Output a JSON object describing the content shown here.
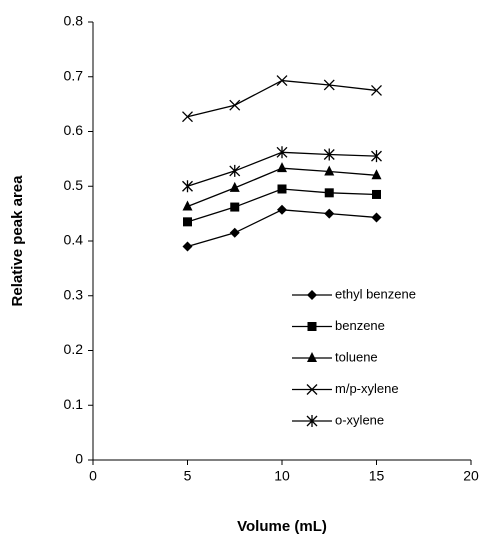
{
  "chart_data": {
    "type": "line",
    "x_label": "Volume (mL)",
    "y_label": "Relative peak area",
    "x": [
      5,
      7.5,
      10,
      12.5,
      15
    ],
    "series": [
      {
        "name": "ethyl benzene",
        "color": "#000000",
        "marker": "diamond",
        "values": [
          0.39,
          0.415,
          0.457,
          0.45,
          0.443
        ]
      },
      {
        "name": "benzene",
        "color": "#000000",
        "marker": "square",
        "values": [
          0.435,
          0.462,
          0.495,
          0.488,
          0.485
        ]
      },
      {
        "name": "toluene",
        "color": "#000000",
        "marker": "triangle",
        "values": [
          0.463,
          0.497,
          0.533,
          0.527,
          0.52
        ]
      },
      {
        "name": "m/p-xylene",
        "color": "#000000",
        "marker": "x",
        "values": [
          0.627,
          0.648,
          0.693,
          0.685,
          0.675
        ]
      },
      {
        "name": "o-xylene",
        "color": "#000000",
        "marker": "asterisk",
        "values": [
          0.5,
          0.528,
          0.562,
          0.558,
          0.555
        ]
      }
    ],
    "xlim": [
      0,
      20
    ],
    "xticks": [
      0,
      5,
      10,
      15,
      20
    ],
    "ylim": [
      0,
      0.8
    ],
    "yticks": [
      0,
      0.1,
      0.2,
      0.3,
      0.4,
      0.5,
      0.6,
      0.7,
      0.8
    ],
    "grid": false
  }
}
